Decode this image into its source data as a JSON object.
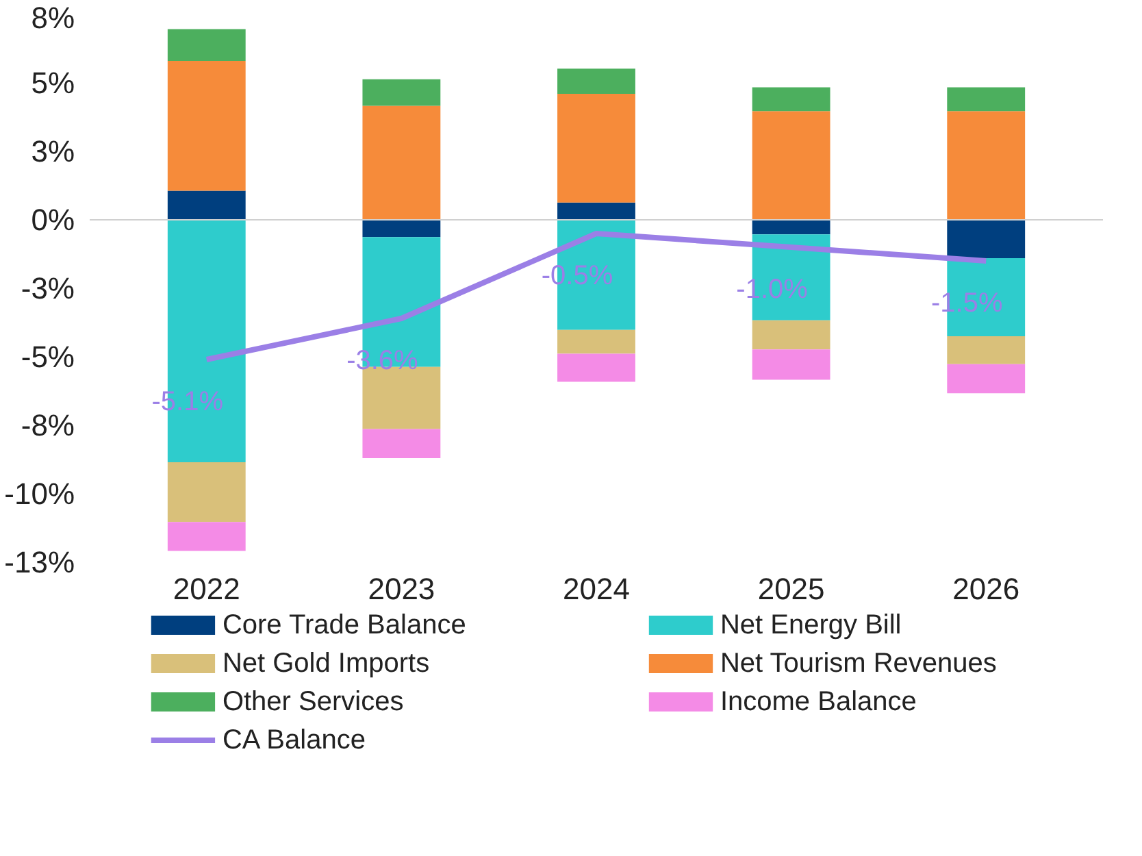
{
  "chart_data": {
    "type": "bar",
    "stacked": true,
    "categories": [
      "2022",
      "2023",
      "2024",
      "2025",
      "2026"
    ],
    "series": [
      {
        "name": "Core Trade Balance",
        "color": "#003f7f",
        "values": [
          1.06,
          -0.63,
          0.63,
          -0.53,
          -1.4
        ]
      },
      {
        "name": "Net Energy Bill",
        "color": "#2ecccc",
        "values": [
          -8.85,
          -4.74,
          -4.02,
          -3.14,
          -2.85
        ]
      },
      {
        "name": "Net Gold Imports",
        "color": "#d9c07a",
        "values": [
          -2.18,
          -2.27,
          -0.87,
          -1.06,
          -1.02
        ]
      },
      {
        "name": "Net Tourism Revenues",
        "color": "#f68b3a",
        "values": [
          4.74,
          4.16,
          3.97,
          3.97,
          3.97
        ]
      },
      {
        "name": "Other Services",
        "color": "#4caf5e",
        "values": [
          1.16,
          0.97,
          0.92,
          0.87,
          0.87
        ]
      },
      {
        "name": "Income Balance",
        "color": "#f48be6",
        "values": [
          -1.06,
          -1.06,
          -1.02,
          -1.11,
          -1.06
        ]
      },
      {
        "name": "CA Balance",
        "type": "line",
        "color": "#9b7fe6",
        "values": [
          -5.1,
          -3.6,
          -0.5,
          -1.0,
          -1.5
        ],
        "value_labels": [
          "-5.1%",
          "-3.6%",
          "-0.5%",
          "-1.0%",
          "-1.5%"
        ]
      }
    ],
    "ylim": [
      -12.5,
      7.5
    ],
    "yticks": [
      {
        "value": 7.5,
        "label": "8%"
      },
      {
        "value": 5,
        "label": "5%"
      },
      {
        "value": 2.5,
        "label": "3%"
      },
      {
        "value": 0,
        "label": "0%"
      },
      {
        "value": -2.5,
        "label": "-3%"
      },
      {
        "value": -5,
        "label": "-5%"
      },
      {
        "value": -7.5,
        "label": "-8%"
      },
      {
        "value": -10,
        "label": "-10%"
      },
      {
        "value": -12.5,
        "label": "-13%"
      }
    ],
    "ref_lines": [
      {
        "axis": "y",
        "value": 0,
        "color": "#d0d0d0"
      }
    ],
    "grid": false,
    "legend": "bottom"
  }
}
